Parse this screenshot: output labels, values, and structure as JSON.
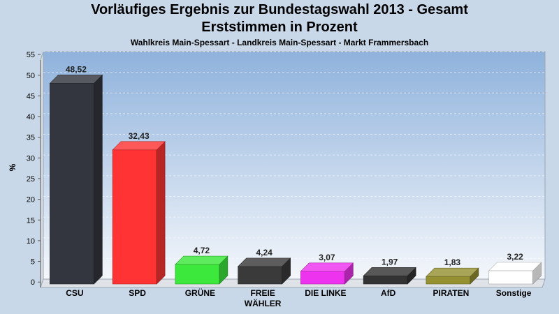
{
  "header": {
    "title": "Vorläufiges Ergebnis zur Bundestagswahl 2013 - Gesamt",
    "subtitle": "Erststimmen in Prozent",
    "caption": "Wahlkreis Main-Spessart - Landkreis Main-Spessart - Markt Frammersbach"
  },
  "chart_data": {
    "type": "bar",
    "ylabel": "%",
    "ylim": [
      0,
      55
    ],
    "yticks": [
      "0",
      "5",
      "10",
      "15",
      "20",
      "25",
      "30",
      "35",
      "40",
      "45",
      "50",
      "55"
    ],
    "grid": true,
    "categories": [
      "CSU",
      "SPD",
      "GRÜNE",
      "FREIE WÄHLER",
      "DIE LINKE",
      "AfD",
      "PIRATEN",
      "Sonstige"
    ],
    "category_lines": [
      [
        "CSU"
      ],
      [
        "SPD"
      ],
      [
        "GRÜNE"
      ],
      [
        "FREIE",
        "WÄHLER"
      ],
      [
        "DIE LINKE"
      ],
      [
        "AfD"
      ],
      [
        "PIRATEN"
      ],
      [
        "Sonstige"
      ]
    ],
    "values": [
      48.52,
      32.43,
      4.72,
      4.24,
      3.07,
      1.97,
      1.83,
      3.22
    ],
    "value_labels": [
      "48,52",
      "32,43",
      "4,72",
      "4,24",
      "3,07",
      "1,97",
      "1,83",
      "3,22"
    ],
    "colors": [
      "#33363f",
      "#ff3333",
      "#3be83b",
      "#3a3a3a",
      "#ee33ee",
      "#333333",
      "#959133",
      "#ffffff"
    ]
  }
}
